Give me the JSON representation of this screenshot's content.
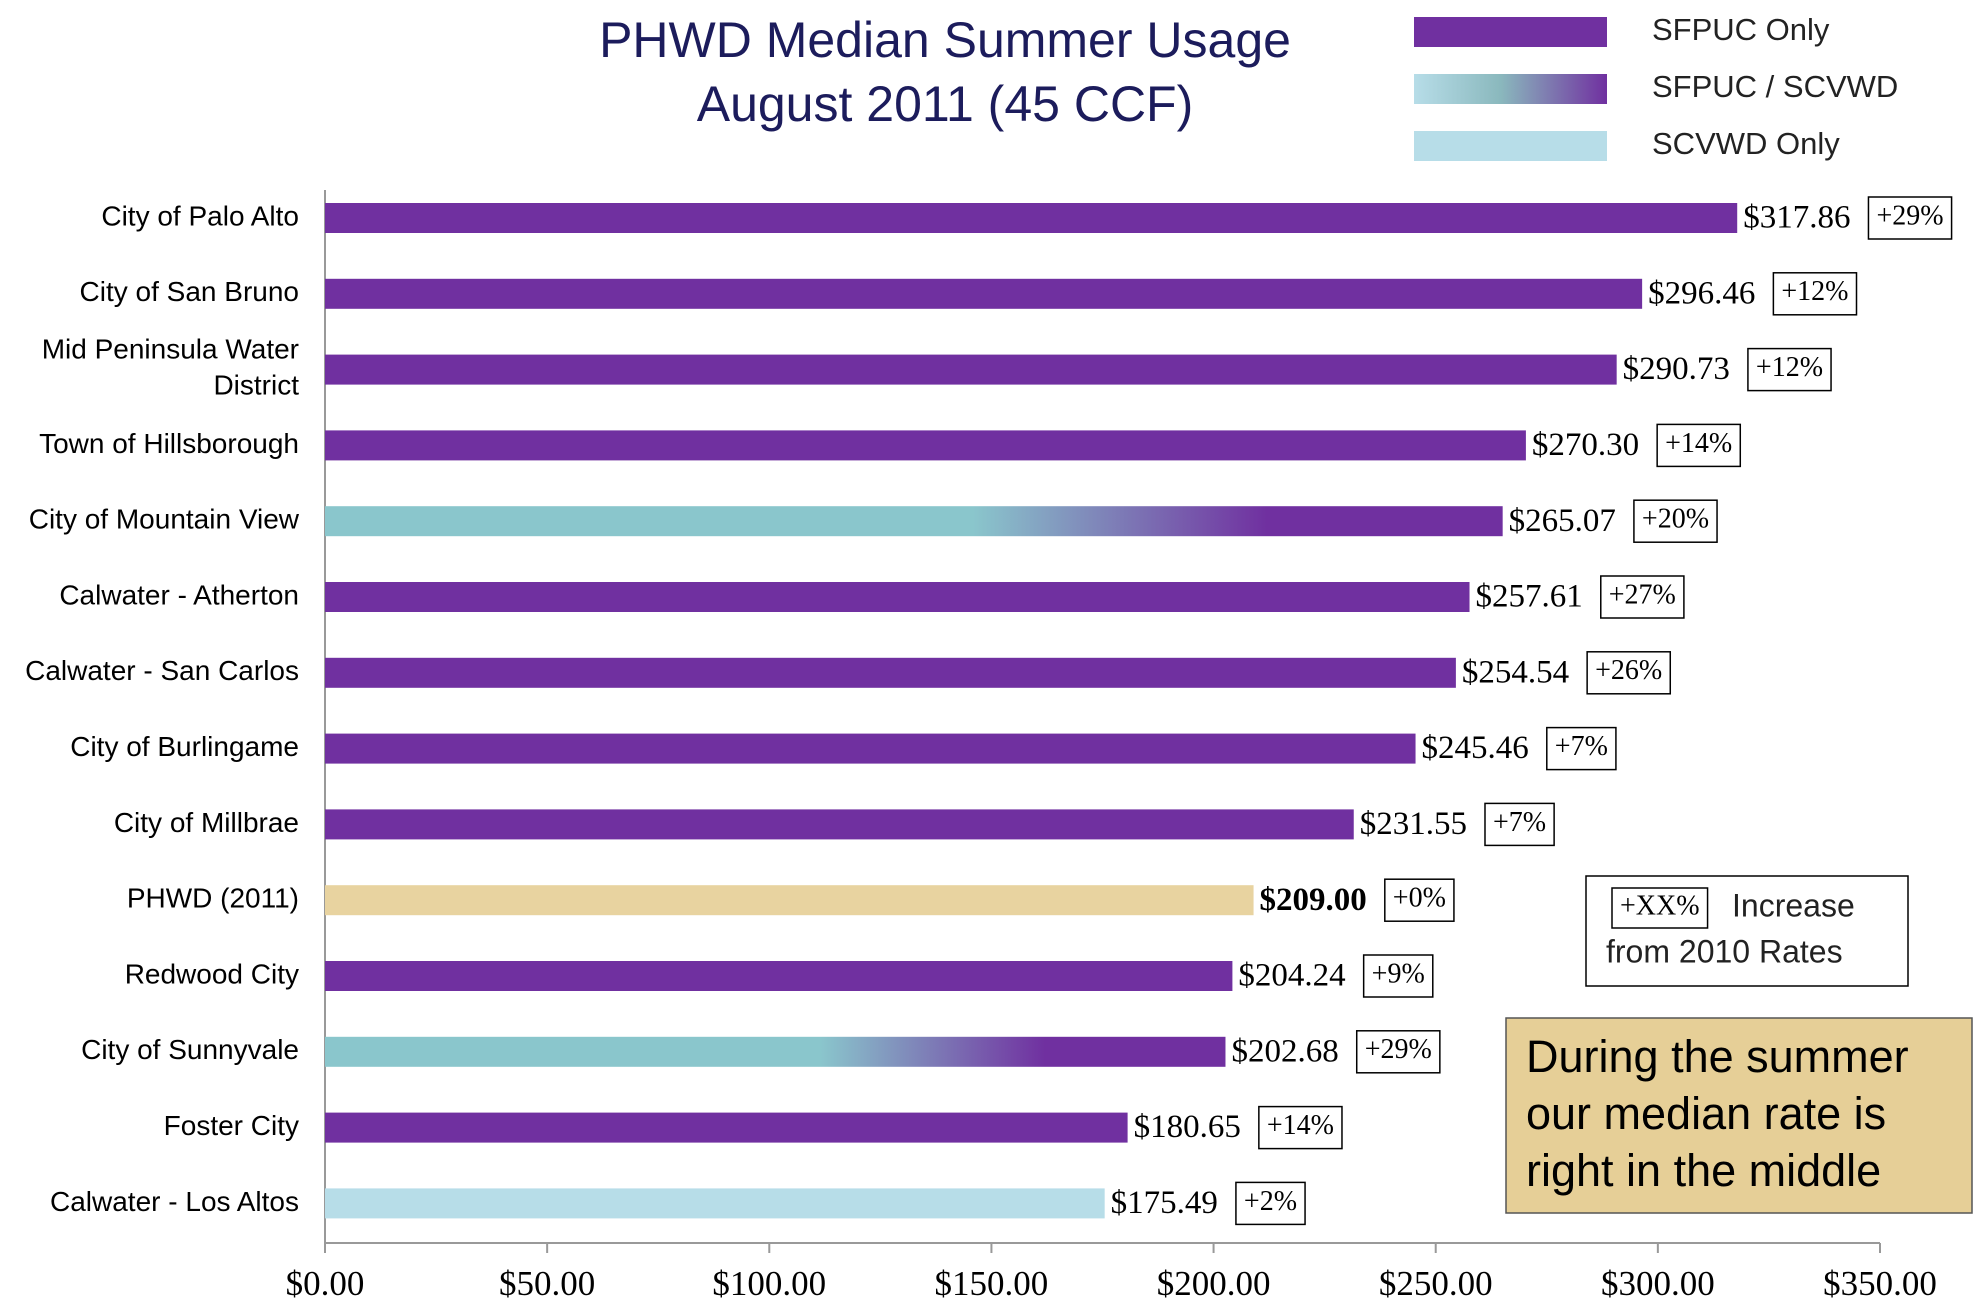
{
  "chart_data": {
    "type": "bar",
    "orientation": "horizontal",
    "title": [
      "PHWD Median Summer Usage",
      "August 2011 (45 CCF)"
    ],
    "categories": [
      "City of Palo Alto",
      "City of San Bruno",
      "Mid Peninsula Water District",
      "Town of Hillsborough",
      "City of Mountain View",
      "Calwater - Atherton",
      "Calwater - San Carlos",
      "City of Burlingame",
      "City of Millbrae",
      "PHWD (2011)",
      "Redwood City",
      "City of Sunnyvale",
      "Foster City",
      "Calwater - Los Altos"
    ],
    "values": [
      317.86,
      296.46,
      290.73,
      270.3,
      265.07,
      257.61,
      254.54,
      245.46,
      231.55,
      209.0,
      204.24,
      202.68,
      180.65,
      175.49
    ],
    "value_labels": [
      "$317.86",
      "$296.46",
      "$290.73",
      "$270.30",
      "$265.07",
      "$257.61",
      "$254.54",
      "$245.46",
      "$231.55",
      "$209.00",
      "$204.24",
      "$202.68",
      "$180.65",
      "$175.49"
    ],
    "changes": [
      "+29%",
      "+12%",
      "+12%",
      "+14%",
      "+20%",
      "+27%",
      "+26%",
      "+7%",
      "+7%",
      "+0%",
      "+9%",
      "+29%",
      "+14%",
      "+2%"
    ],
    "colors": [
      "#7030a0",
      "#7030a0",
      "#7030a0",
      "#7030a0",
      [
        "#8ac6cc",
        "#7030a0"
      ],
      "#7030a0",
      "#7030a0",
      "#7030a0",
      "#7030a0",
      "#e8d3a0",
      "#7030a0",
      [
        "#8ac6cc",
        "#7030a0"
      ],
      "#7030a0",
      "#b7dde8"
    ],
    "legend": [
      {
        "name": "SFPUC Only",
        "color": "#7030a0"
      },
      {
        "name": "SFPUC / SCVWD",
        "color": [
          "#b7dde8",
          "#7030a0"
        ]
      },
      {
        "name": "SCVWD Only",
        "color": "#b7dde8"
      }
    ],
    "xlim": [
      0,
      350
    ],
    "xticks": [
      {
        "value": 0,
        "label": "$0.00"
      },
      {
        "value": 50,
        "label": "$50.00"
      },
      {
        "value": 100,
        "label": "$100.00"
      },
      {
        "value": 150,
        "label": "$150.00"
      },
      {
        "value": 200,
        "label": "$200.00"
      },
      {
        "value": 250,
        "label": "$250.00"
      },
      {
        "value": 300,
        "label": "$300.00"
      },
      {
        "value": 350,
        "label": "$350.00"
      }
    ],
    "key": {
      "sample": "+XX%",
      "text": [
        "Increase",
        "from 2010 Rates"
      ]
    },
    "callout": [
      "During the summer",
      "our median rate is",
      "right in the middle"
    ]
  }
}
